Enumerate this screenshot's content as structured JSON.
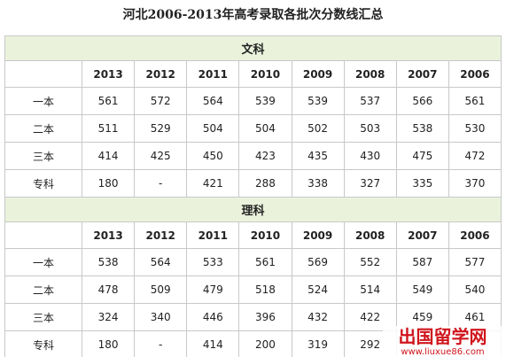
{
  "title": "河北2006-2013年高考录取各批次分数线汇总",
  "sections": [
    {
      "name": "文科",
      "header": [
        "2013",
        "2012",
        "2011",
        "2010",
        "2009",
        "2008",
        "2007",
        "2006"
      ],
      "rows": [
        [
          "一本",
          "561",
          "572",
          "564",
          "539",
          "539",
          "537",
          "566",
          "561"
        ],
        [
          "二本",
          "511",
          "529",
          "504",
          "504",
          "502",
          "503",
          "538",
          "530"
        ],
        [
          "三本",
          "414",
          "425",
          "450",
          "423",
          "435",
          "430",
          "475",
          "472"
        ],
        [
          "专科",
          "180",
          "-",
          "421",
          "288",
          "338",
          "327",
          "335",
          "370"
        ]
      ]
    },
    {
      "name": "理科",
      "header": [
        "2013",
        "2012",
        "2011",
        "2010",
        "2009",
        "2008",
        "2007",
        "2006"
      ],
      "rows": [
        [
          "一本",
          "538",
          "564",
          "533",
          "561",
          "569",
          "552",
          "587",
          "577"
        ],
        [
          "二本",
          "478",
          "509",
          "479",
          "518",
          "524",
          "514",
          "549",
          "540"
        ],
        [
          "三本",
          "324",
          "340",
          "446",
          "396",
          "432",
          "422",
          "459",
          "461"
        ],
        [
          "专科",
          "180",
          "-",
          "414",
          "200",
          "319",
          "292",
          null,
          null
        ]
      ]
    }
  ],
  "watermark": {
    "brand": "出国留学网",
    "url": "www.liuxue86.com"
  }
}
